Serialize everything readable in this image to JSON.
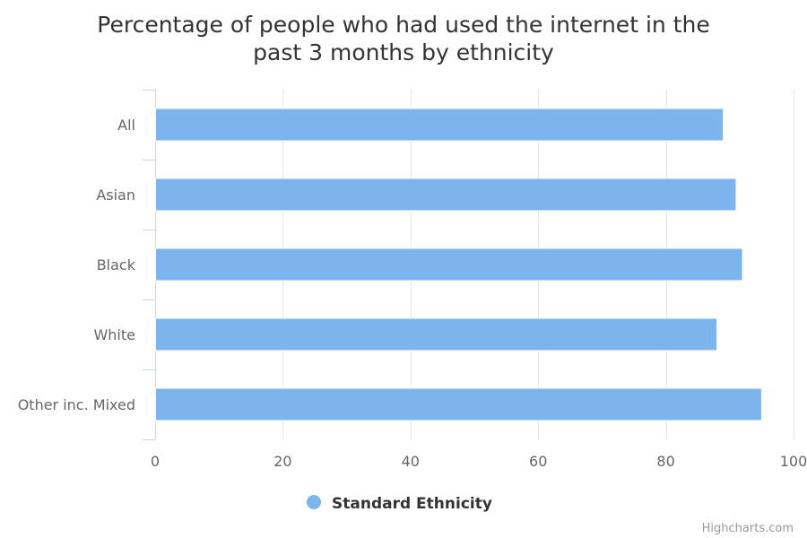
{
  "chart_data": {
    "type": "bar",
    "orientation": "horizontal",
    "title": "Percentage of people who had used the internet in the past 3 months by ethnicity",
    "title_lines": [
      "Percentage of people who had used the internet in the",
      "past 3 months by ethnicity"
    ],
    "categories": [
      "All",
      "Asian",
      "Black",
      "White",
      "Other inc. Mixed"
    ],
    "series": [
      {
        "name": "Standard Ethnicity",
        "color": "#7cb5ec",
        "values": [
          89,
          91,
          92,
          88,
          95
        ]
      }
    ],
    "xlim": [
      0,
      100
    ],
    "ticks": [
      0,
      20,
      40,
      60,
      80,
      100
    ],
    "grid": true,
    "legend_position": "bottom-center",
    "credits": "Highcharts.com"
  }
}
